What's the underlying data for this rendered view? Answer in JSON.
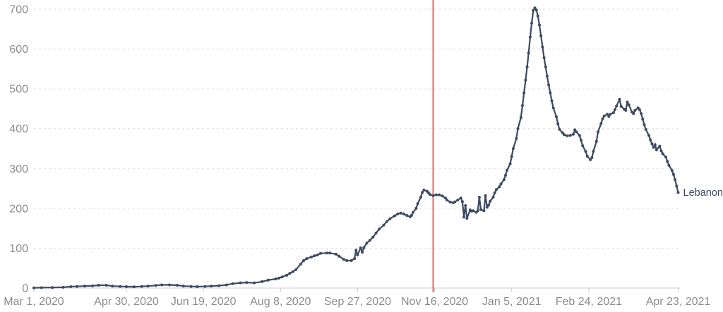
{
  "chart_data": {
    "type": "line",
    "title": "",
    "entity_label": "Lebanon",
    "x_start_date": "Mar 1, 2020",
    "x_end_date": "Apr 23, 2021",
    "x_tick_labels": [
      {
        "label": "Mar 1, 2020",
        "day": 0
      },
      {
        "label": "Apr 30, 2020",
        "day": 60
      },
      {
        "label": "Jun 19, 2020",
        "day": 110
      },
      {
        "label": "Aug 8, 2020",
        "day": 160
      },
      {
        "label": "Sep 27, 2020",
        "day": 210
      },
      {
        "label": "Nov 16, 2020",
        "day": 260
      },
      {
        "label": "Jan 5, 2021",
        "day": 310
      },
      {
        "label": "Feb 24, 2021",
        "day": 360
      },
      {
        "label": "Apr 23, 2021",
        "day": 418
      }
    ],
    "y_tick_labels": [
      "0",
      "100",
      "200",
      "300",
      "400",
      "500",
      "600",
      "700"
    ],
    "ylim": [
      0,
      700
    ],
    "xlim_days": [
      0,
      418
    ],
    "grid": "horizontal-dashed",
    "legend_position": "end-of-line-label",
    "event_line": {
      "date": "Nov 16, 2020",
      "day": 259,
      "color": "#f0402f"
    },
    "series": [
      {
        "name": "Lebanon",
        "color": "#3e4a62",
        "points": [
          [
            0,
            0.5
          ],
          [
            5,
            1
          ],
          [
            12,
            1.5
          ],
          [
            19,
            2
          ],
          [
            24,
            3.5
          ],
          [
            28,
            4
          ],
          [
            33,
            5
          ],
          [
            38,
            5.5
          ],
          [
            42,
            7
          ],
          [
            47,
            7
          ],
          [
            51,
            5
          ],
          [
            56,
            4
          ],
          [
            60,
            3.5
          ],
          [
            65,
            3
          ],
          [
            70,
            4
          ],
          [
            74,
            5
          ],
          [
            79,
            6.5
          ],
          [
            83,
            8
          ],
          [
            88,
            8
          ],
          [
            93,
            7
          ],
          [
            97,
            5
          ],
          [
            102,
            4
          ],
          [
            106,
            3.5
          ],
          [
            111,
            4
          ],
          [
            115,
            5
          ],
          [
            120,
            6
          ],
          [
            125,
            8
          ],
          [
            129,
            11
          ],
          [
            134,
            13
          ],
          [
            138,
            14
          ],
          [
            143,
            13
          ],
          [
            148,
            16
          ],
          [
            152,
            20
          ],
          [
            157,
            23
          ],
          [
            159,
            25
          ],
          [
            161,
            28
          ],
          [
            164,
            32
          ],
          [
            166,
            37
          ],
          [
            168,
            41
          ],
          [
            170,
            46
          ],
          [
            173,
            60
          ],
          [
            175,
            69
          ],
          [
            177,
            74
          ],
          [
            180,
            78
          ],
          [
            182,
            81
          ],
          [
            184,
            83
          ],
          [
            186,
            87
          ],
          [
            190,
            88
          ],
          [
            192,
            88
          ],
          [
            196,
            85
          ],
          [
            198,
            80
          ],
          [
            201,
            72
          ],
          [
            203,
            69
          ],
          [
            206,
            69
          ],
          [
            208,
            74
          ],
          [
            209,
            95
          ],
          [
            210,
            83
          ],
          [
            212,
            101
          ],
          [
            213,
            90
          ],
          [
            214,
            101
          ],
          [
            216,
            113
          ],
          [
            218,
            120
          ],
          [
            220,
            128
          ],
          [
            222,
            138
          ],
          [
            224,
            148
          ],
          [
            227,
            158
          ],
          [
            229,
            167
          ],
          [
            231,
            174
          ],
          [
            234,
            181
          ],
          [
            236,
            186
          ],
          [
            238,
            188
          ],
          [
            240,
            186
          ],
          [
            242,
            182
          ],
          [
            244,
            179
          ],
          [
            245,
            182
          ],
          [
            246,
            190
          ],
          [
            248,
            200
          ],
          [
            249,
            212
          ],
          [
            251,
            228
          ],
          [
            252,
            240
          ],
          [
            253,
            246
          ],
          [
            255,
            243
          ],
          [
            256,
            239
          ],
          [
            257,
            235
          ],
          [
            259,
            232
          ],
          [
            261,
            234
          ],
          [
            263,
            234
          ],
          [
            265,
            231
          ],
          [
            267,
            226
          ],
          [
            268,
            221
          ],
          [
            270,
            216
          ],
          [
            272,
            214
          ],
          [
            273,
            216
          ],
          [
            275,
            221
          ],
          [
            277,
            226
          ],
          [
            278,
            217
          ],
          [
            279,
            178
          ],
          [
            280,
            207
          ],
          [
            281,
            175
          ],
          [
            283,
            196
          ],
          [
            284,
            193
          ],
          [
            285,
            194
          ],
          [
            287,
            190
          ],
          [
            288,
            194
          ],
          [
            289,
            228
          ],
          [
            290,
            197
          ],
          [
            292,
            194
          ],
          [
            293,
            232
          ],
          [
            294,
            203
          ],
          [
            295,
            208
          ],
          [
            296,
            218
          ],
          [
            298,
            228
          ],
          [
            299,
            239
          ],
          [
            300,
            247
          ],
          [
            302,
            254
          ],
          [
            303,
            261
          ],
          [
            305,
            272
          ],
          [
            306,
            283
          ],
          [
            307,
            296
          ],
          [
            309,
            312
          ],
          [
            310,
            330
          ],
          [
            311,
            350
          ],
          [
            313,
            375
          ],
          [
            314,
            400
          ],
          [
            316,
            428
          ],
          [
            317,
            458
          ],
          [
            318,
            490
          ],
          [
            319,
            522
          ],
          [
            320,
            555
          ],
          [
            321,
            590
          ],
          [
            322,
            630
          ],
          [
            323,
            665
          ],
          [
            324,
            697
          ],
          [
            325,
            703
          ],
          [
            326,
            698
          ],
          [
            327,
            683
          ],
          [
            328,
            660
          ],
          [
            329,
            633
          ],
          [
            330,
            605
          ],
          [
            331,
            578
          ],
          [
            332,
            555
          ],
          [
            333,
            532
          ],
          [
            334,
            510
          ],
          [
            335,
            490
          ],
          [
            336,
            470
          ],
          [
            337,
            452
          ],
          [
            339,
            430
          ],
          [
            340,
            412
          ],
          [
            341,
            398
          ],
          [
            343,
            390
          ],
          [
            344,
            385
          ],
          [
            346,
            382
          ],
          [
            348,
            383
          ],
          [
            350,
            386
          ],
          [
            351,
            397
          ],
          [
            352,
            392
          ],
          [
            354,
            383
          ],
          [
            355,
            371
          ],
          [
            356,
            357
          ],
          [
            358,
            343
          ],
          [
            359,
            331
          ],
          [
            361,
            322
          ],
          [
            362,
            327
          ],
          [
            363,
            343
          ],
          [
            365,
            368
          ],
          [
            366,
            392
          ],
          [
            368,
            413
          ],
          [
            369,
            425
          ],
          [
            370,
            432
          ],
          [
            372,
            436
          ],
          [
            373,
            431
          ],
          [
            374,
            436
          ],
          [
            376,
            440
          ],
          [
            377,
            448
          ],
          [
            378,
            457
          ],
          [
            380,
            474
          ],
          [
            381,
            456
          ],
          [
            383,
            449
          ],
          [
            384,
            446
          ],
          [
            385,
            467
          ],
          [
            386,
            460
          ],
          [
            388,
            442
          ],
          [
            389,
            438
          ],
          [
            390,
            446
          ],
          [
            392,
            452
          ],
          [
            393,
            448
          ],
          [
            394,
            438
          ],
          [
            395,
            424
          ],
          [
            396,
            410
          ],
          [
            397,
            398
          ],
          [
            399,
            383
          ],
          [
            400,
            372
          ],
          [
            401,
            362
          ],
          [
            402,
            353
          ],
          [
            403,
            360
          ],
          [
            404,
            347
          ],
          [
            406,
            356
          ],
          [
            407,
            344
          ],
          [
            408,
            337
          ],
          [
            410,
            329
          ],
          [
            411,
            318
          ],
          [
            412,
            308
          ],
          [
            414,
            295
          ],
          [
            415,
            285
          ],
          [
            416,
            272
          ],
          [
            417,
            256
          ],
          [
            418,
            240
          ]
        ]
      }
    ],
    "colors": {
      "series": "#3e4a62",
      "event_line": "#f0402f",
      "gridline": "#dddddd",
      "axis_line": "#cccccc",
      "tick_text": "#8c8c8c",
      "background": "#ffffff"
    }
  }
}
